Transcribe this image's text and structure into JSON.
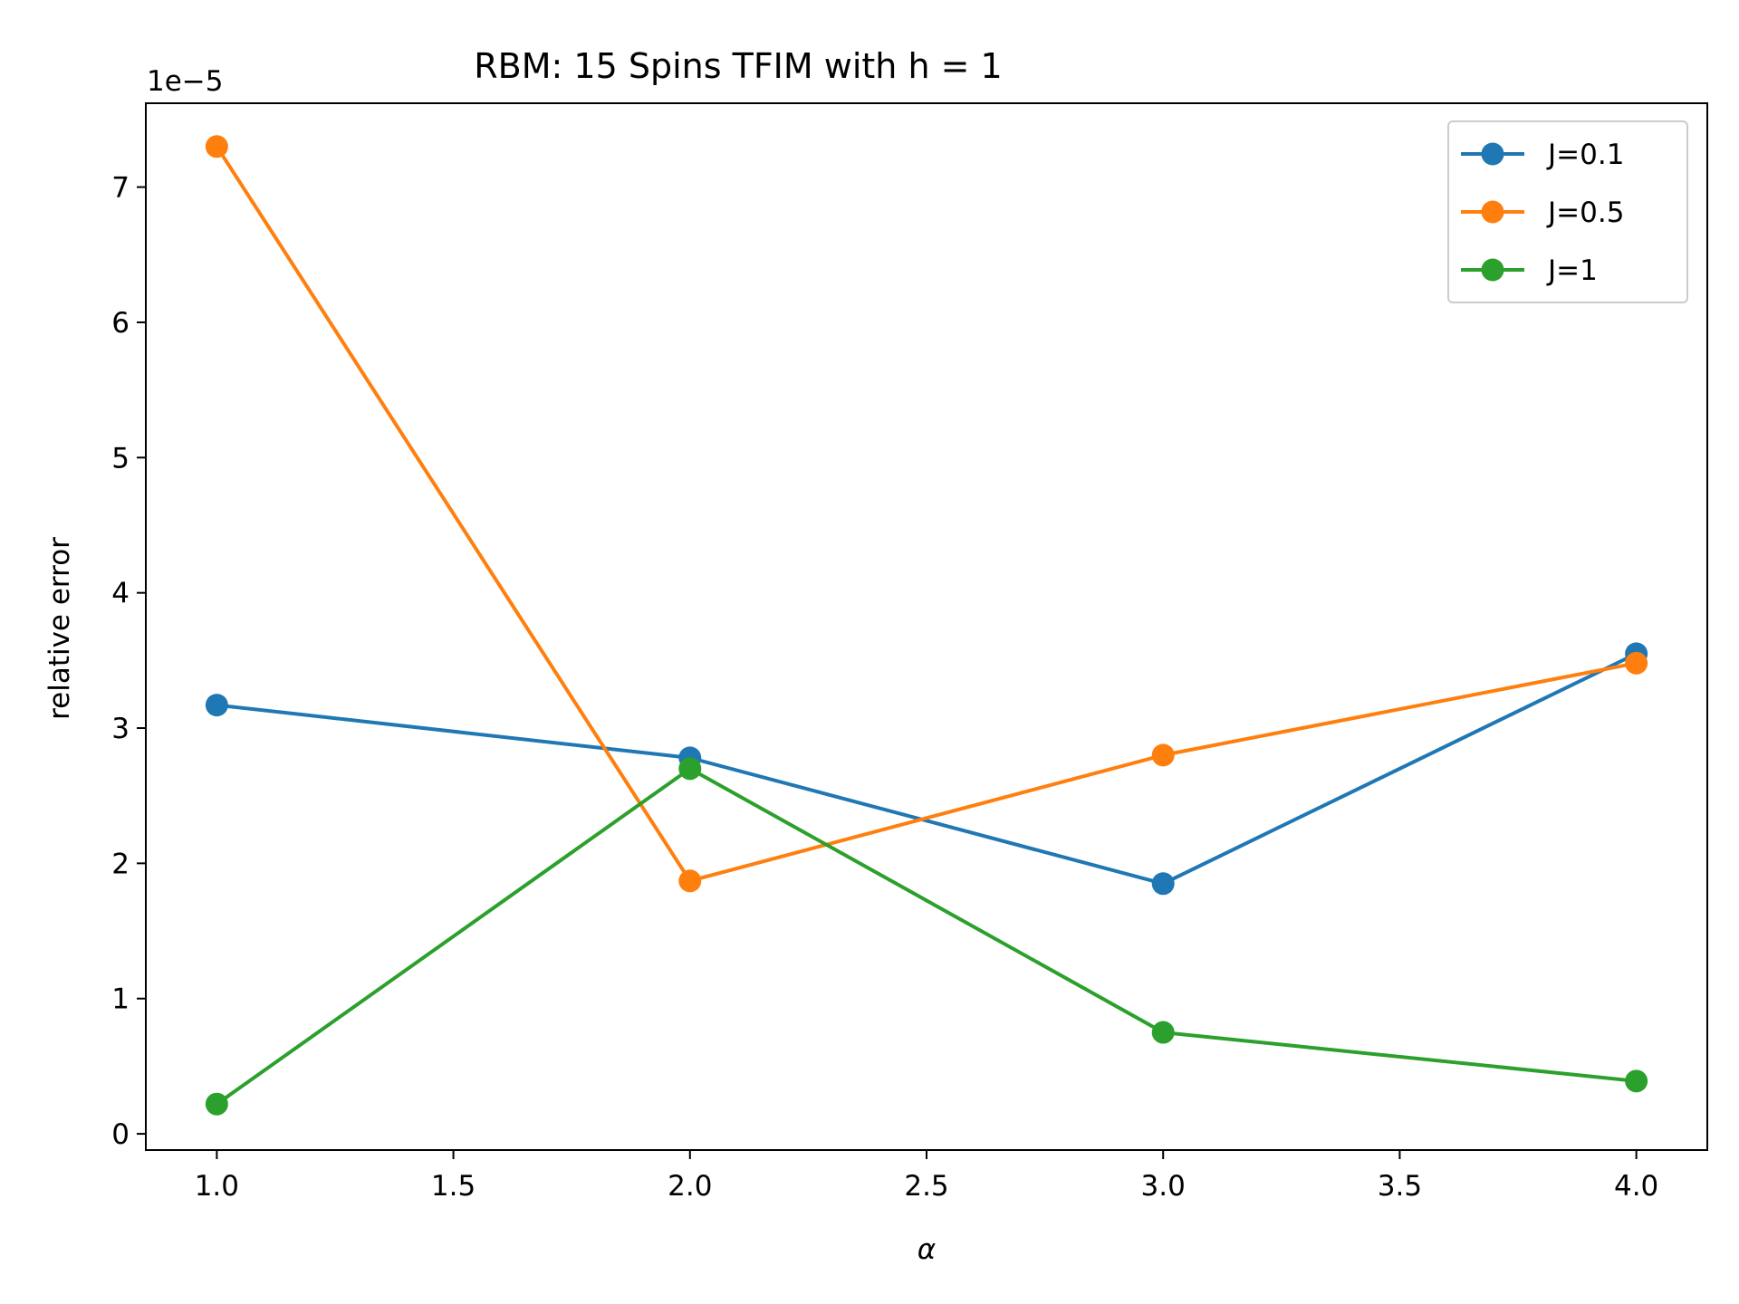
{
  "chart_data": {
    "type": "line",
    "title": "RBM: 15 Spins TFIM with h = 1",
    "xlabel": "α",
    "ylabel": "relative error",
    "y_offset_label": "1e−5",
    "x": [
      1.0,
      2.0,
      3.0,
      4.0
    ],
    "xlim": [
      0.85,
      4.15
    ],
    "ylim": [
      -0.12,
      7.62
    ],
    "y_scale_factor": 1e-05,
    "x_ticks": [
      1.0,
      1.5,
      2.0,
      2.5,
      3.0,
      3.5,
      4.0
    ],
    "x_tick_labels": [
      "1.0",
      "1.5",
      "2.0",
      "2.5",
      "3.0",
      "3.5",
      "4.0"
    ],
    "y_ticks": [
      0,
      1,
      2,
      3,
      4,
      5,
      6,
      7
    ],
    "y_tick_labels": [
      "0",
      "1",
      "2",
      "3",
      "4",
      "5",
      "6",
      "7"
    ],
    "grid": false,
    "legend_position": "top-right",
    "series": [
      {
        "name": "J=0.1",
        "color": "#1f77b4",
        "values": [
          3.17,
          2.78,
          1.85,
          3.55
        ]
      },
      {
        "name": "J=0.5",
        "color": "#ff7f0e",
        "values": [
          7.3,
          1.87,
          2.8,
          3.48
        ]
      },
      {
        "name": "J=1",
        "color": "#2ca02c",
        "values": [
          0.22,
          2.7,
          0.75,
          0.39
        ]
      }
    ]
  }
}
